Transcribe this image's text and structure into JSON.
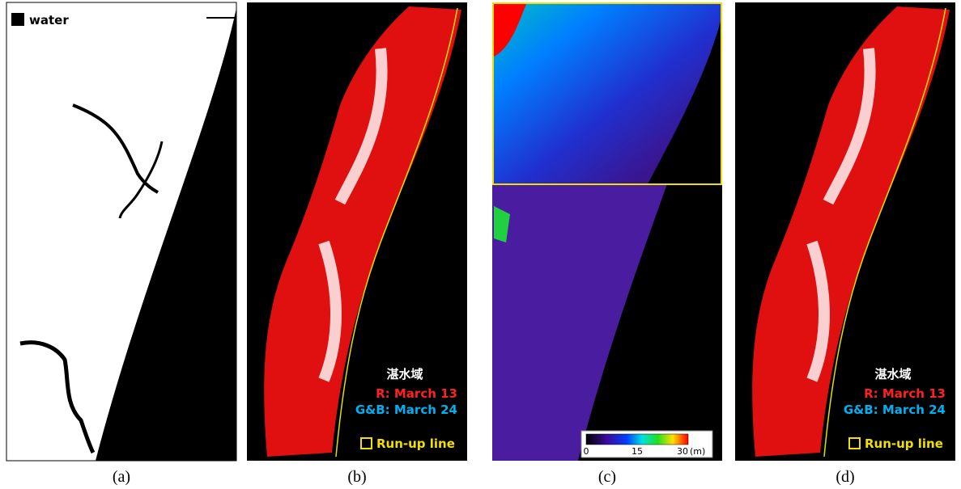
{
  "panels": [
    {
      "caption": "(a)",
      "legend": {
        "label": "water"
      }
    },
    {
      "caption": "(b)",
      "legend": {
        "title": "湛水域",
        "red": "R: March 13",
        "blue": "G&B: March 24",
        "runup": "Run-up line"
      }
    },
    {
      "caption": "(c)",
      "colorbar": {
        "ticks": [
          0,
          15,
          30
        ],
        "unit": "(m)"
      }
    },
    {
      "caption": "(d)",
      "legend": {
        "title": "湛水域",
        "red": "R: March 13",
        "blue": "G&B: March 24",
        "runup": "Run-up line"
      }
    }
  ]
}
